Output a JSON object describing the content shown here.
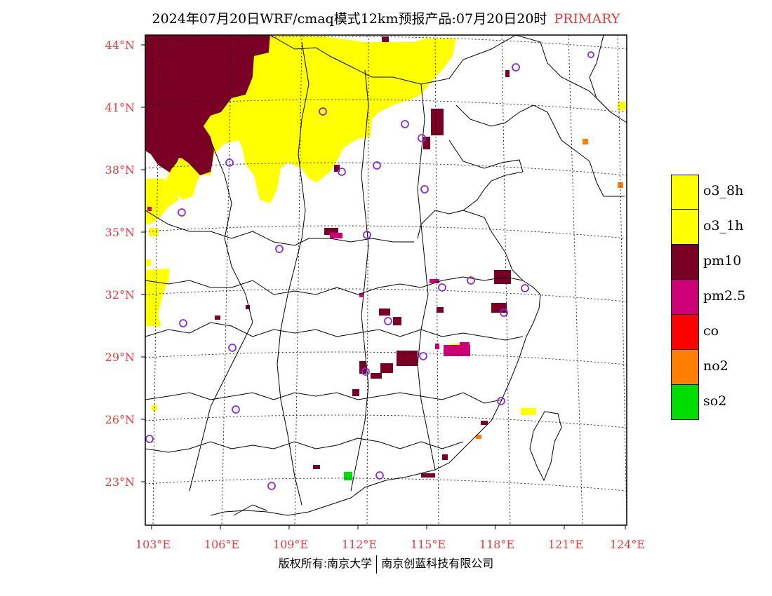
{
  "title": {
    "text": "2024年07月20日WRF/cmaq模式12km预报产品:07月20日20时",
    "tag": "PRIMARY"
  },
  "map": {
    "lat_labels": [
      "44°N",
      "41°N",
      "38°N",
      "35°N",
      "32°N",
      "29°N",
      "26°N",
      "23°N"
    ],
    "lon_labels": [
      "103°E",
      "106°E",
      "109°E",
      "112°E",
      "115°E",
      "118°E",
      "121°E",
      "124°E"
    ]
  },
  "legend": {
    "items": [
      {
        "label": "o3_8h",
        "color": "#ffff00"
      },
      {
        "label": "o3_1h",
        "color": "#ffff00"
      },
      {
        "label": "pm10",
        "color": "#7a0026"
      },
      {
        "label": "pm2.5",
        "color": "#cc0077"
      },
      {
        "label": "co",
        "color": "#ff0000"
      },
      {
        "label": "no2",
        "color": "#ff7f00"
      },
      {
        "label": "so2",
        "color": "#00dd00"
      }
    ]
  },
  "footer": {
    "left": "版权所有:南京大学",
    "right": "南京创蓝科技有限公司"
  },
  "colors": {
    "accent_red": "#e8393f",
    "pm10": "#7a0026",
    "o3": "#ffff00",
    "pm25": "#cc0077",
    "no2": "#ff7f00",
    "so2": "#00dd00",
    "city_marker": "#8a2be2"
  }
}
